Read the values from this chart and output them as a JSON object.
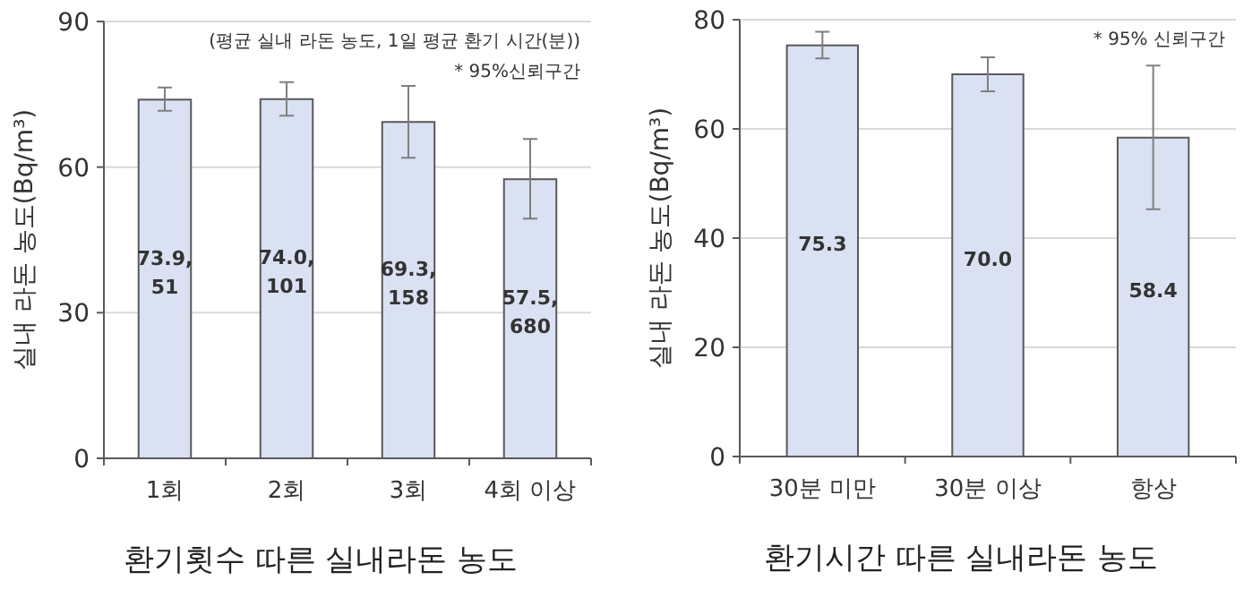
{
  "chart_data": [
    {
      "type": "bar",
      "title": "환기횟수 따른 실내라돈 농도",
      "ylabel": "실내 라돈 농도(Bq/m³)",
      "categories": [
        "1회",
        "2회",
        "3회",
        "4회 이상"
      ],
      "values": [
        73.9,
        74.0,
        69.3,
        57.5
      ],
      "value_labels": [
        "73.9, 51",
        "74.0, 101",
        "69.3, 158",
        "57.5, 680"
      ],
      "errors": [
        [
          71.6,
          76.4
        ],
        [
          70.6,
          77.5
        ],
        [
          61.9,
          76.7
        ],
        [
          49.4,
          65.8
        ]
      ],
      "color": "#d9e1f2",
      "ylim": [
        0,
        90
      ],
      "yticks": [
        0,
        30,
        60,
        90
      ],
      "grid": "y",
      "annotations": [
        "(평균 실내 라돈 농도, 1일 평균 환기 시간(분))",
        "* 95%신뢰구간"
      ]
    },
    {
      "type": "bar",
      "title": "환기시간 따른 실내라돈 농도",
      "ylabel": "실내 라돈 농도(Bq/m³)",
      "categories": [
        "30분 미만",
        "30분 이상",
        "항상"
      ],
      "values": [
        75.3,
        70.0,
        58.4
      ],
      "value_labels": [
        "75.3",
        "70.0",
        "58.4"
      ],
      "errors": [
        [
          72.9,
          77.8
        ],
        [
          66.9,
          73.1
        ],
        [
          45.3,
          71.6
        ]
      ],
      "color": "#d9e1f2",
      "ylim": [
        0,
        80
      ],
      "yticks": [
        0,
        20,
        40,
        60,
        80
      ],
      "grid": "y",
      "annotations": [
        "* 95% 신뢰구간"
      ]
    }
  ]
}
